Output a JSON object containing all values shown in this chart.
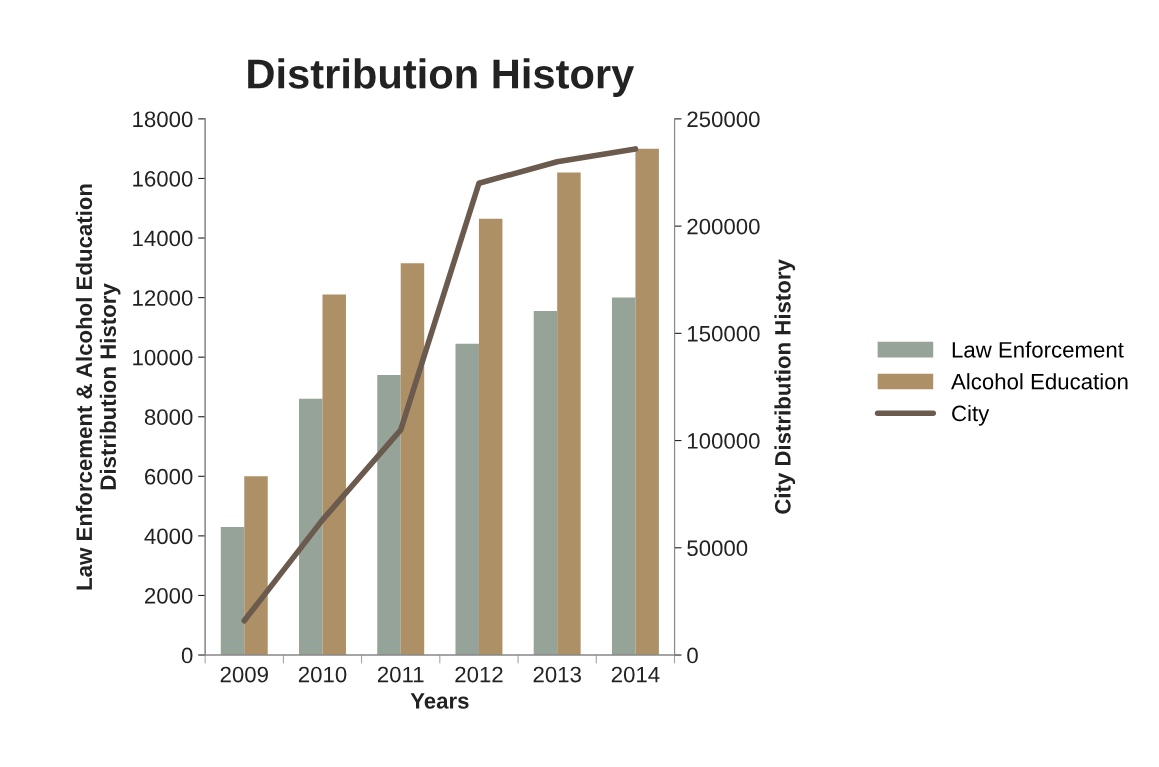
{
  "chart_data": {
    "type": "bar",
    "title": "Distribution History",
    "xlabel": "Years",
    "ylabel": "Law Enforcement & Alcohol Education\nDistribution History",
    "y2label": "City Distribution History",
    "categories": [
      "2009",
      "2010",
      "2011",
      "2012",
      "2013",
      "2014"
    ],
    "series": [
      {
        "name": "Law Enforcement",
        "color": "#95a398",
        "values": [
          4300,
          8600,
          9400,
          10450,
          11550,
          12000
        ]
      },
      {
        "name": "Alcohol Education",
        "color": "#ae9066",
        "values": [
          6000,
          12100,
          13150,
          14650,
          16200,
          17000
        ]
      },
      {
        "name": "City",
        "type": "line",
        "axis": "y2",
        "color": "#6b5a4e",
        "values": [
          16000,
          63000,
          105000,
          220000,
          230000,
          236000
        ]
      }
    ],
    "ylim": [
      0,
      18000
    ],
    "yticks": [
      0,
      2000,
      4000,
      6000,
      8000,
      10000,
      12000,
      14000,
      16000,
      18000
    ],
    "y2lim": [
      0,
      250000
    ],
    "y2ticks": [
      0,
      50000,
      100000,
      150000,
      200000,
      250000
    ],
    "grid": false,
    "legend": "right",
    "marker": "none",
    "line_style": "solid"
  }
}
